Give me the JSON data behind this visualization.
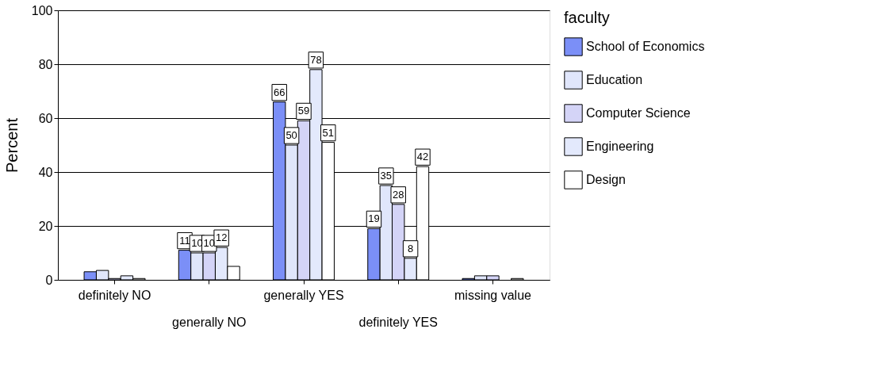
{
  "chart_data": {
    "type": "bar",
    "ylabel": "Percent",
    "legend_title": "faculty",
    "categories": [
      "definitely NO",
      "generally NO",
      "generally YES",
      "definitely YES",
      "missing value"
    ],
    "series": [
      {
        "name": "School of Economics",
        "color": "#7b8ff7",
        "values": [
          3,
          11,
          66,
          19,
          0.5
        ],
        "value_labels": [
          null,
          "11",
          "66",
          "19",
          null
        ]
      },
      {
        "name": "Education",
        "color": "#e0e6fb",
        "values": [
          3.5,
          10,
          50,
          35,
          1.5
        ],
        "value_labels": [
          null,
          "10",
          "50",
          "35",
          null
        ]
      },
      {
        "name": "Computer Science",
        "color": "#d4d4f7",
        "values": [
          0.5,
          10,
          59,
          28,
          1.5
        ],
        "value_labels": [
          null,
          "10",
          "59",
          "28",
          null
        ]
      },
      {
        "name": "Engineering",
        "color": "#e3e9fc",
        "values": [
          1.5,
          12,
          78,
          8,
          null
        ],
        "value_labels": [
          null,
          "12",
          "78",
          "8",
          null
        ]
      },
      {
        "name": "Design",
        "color": "#ffffff",
        "values": [
          0.5,
          5,
          51,
          42,
          0.5
        ],
        "value_labels": [
          null,
          null,
          "51",
          "42",
          null
        ]
      }
    ],
    "ylim": [
      0,
      100
    ],
    "yticks": [
      0,
      20,
      40,
      60,
      80,
      100
    ],
    "grid": "y",
    "legend": "right"
  }
}
